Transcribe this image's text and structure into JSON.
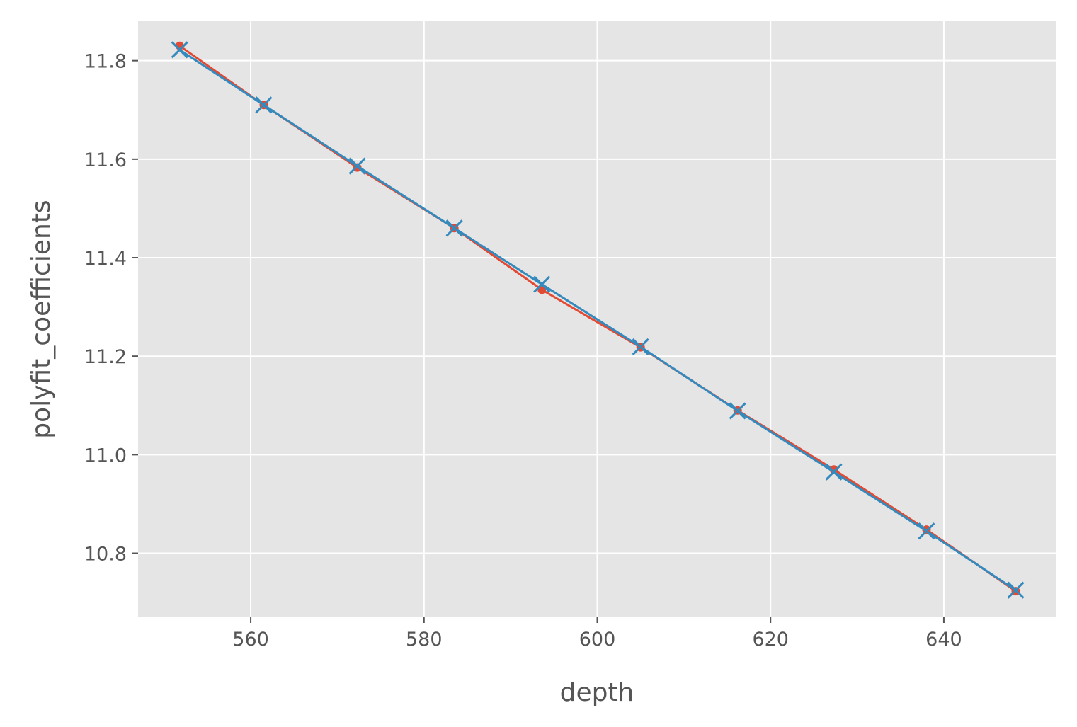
{
  "chart_data": {
    "type": "line",
    "title": "",
    "xlabel": "depth",
    "ylabel": "polyfit_coefficients",
    "xlim": [
      547,
      653
    ],
    "ylim": [
      10.67,
      11.88
    ],
    "xticks": [
      560,
      580,
      600,
      620,
      640
    ],
    "yticks": [
      10.8,
      11.0,
      11.2,
      11.4,
      11.6,
      11.8
    ],
    "xtick_labels": [
      "560",
      "580",
      "600",
      "620",
      640
    ],
    "ytick_labels": [
      "10.8",
      "11.0",
      "11.2",
      "11.4",
      "11.6",
      "11.8"
    ],
    "grid": true,
    "background": "#e5e5e5",
    "series": [
      {
        "marker": "circle",
        "color": "#e24a33",
        "x": [
          551.8,
          561.5,
          572.3,
          583.5,
          593.6,
          605.0,
          616.2,
          627.3,
          638.0,
          648.3
        ],
        "y": [
          11.83,
          11.71,
          11.583,
          11.46,
          11.335,
          11.218,
          11.09,
          10.97,
          10.848,
          10.723
        ]
      },
      {
        "marker": "x",
        "color": "#348abd",
        "x": [
          551.8,
          561.5,
          572.3,
          583.5,
          593.6,
          605.0,
          616.2,
          627.3,
          638.0,
          648.3
        ],
        "y": [
          11.822,
          11.71,
          11.586,
          11.46,
          11.346,
          11.219,
          11.089,
          10.965,
          10.845,
          10.725
        ]
      }
    ]
  }
}
